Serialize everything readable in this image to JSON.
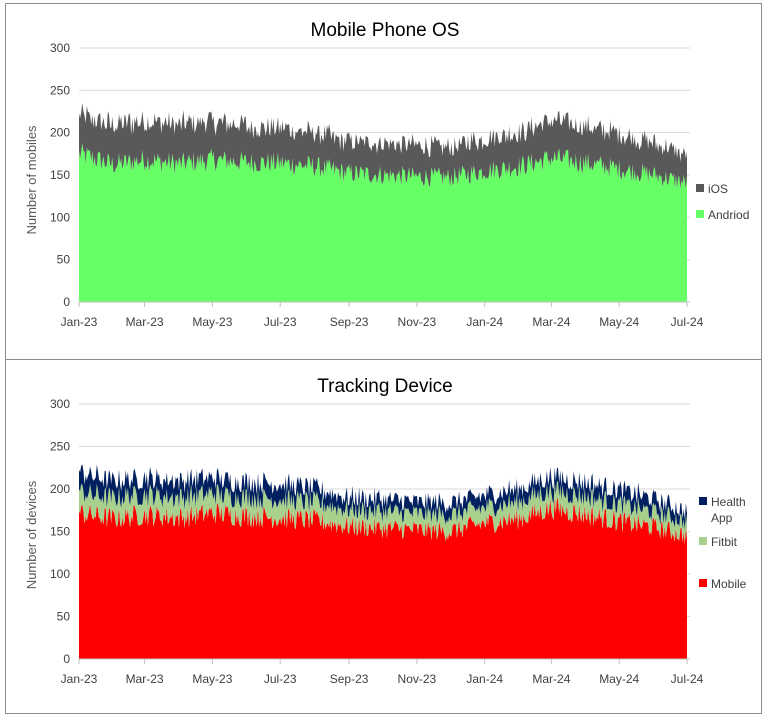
{
  "chart_data": [
    {
      "type": "area",
      "stacked": true,
      "title": "Mobile Phone OS",
      "ylabel": "Number of mobiles",
      "xlabel": "",
      "ylim": [
        0,
        300
      ],
      "yticks": [
        "0",
        "50",
        "100",
        "150",
        "200",
        "250",
        "300"
      ],
      "xticks": [
        "Jan-23",
        "Mar-23",
        "May-23",
        "Jul-23",
        "Sep-23",
        "Nov-23",
        "Jan-24",
        "Mar-24",
        "May-24",
        "Jul-24"
      ],
      "x_range": [
        "2023-01-01",
        "2024-07-01"
      ],
      "series": [
        {
          "name": "Andriod",
          "color": "#66ff66",
          "monthly_avg": [
            [
              "2023-01-01",
              175
            ],
            [
              "2023-02-01",
              162
            ],
            [
              "2023-03-01",
              168
            ],
            [
              "2023-04-01",
              163
            ],
            [
              "2023-05-01",
              168
            ],
            [
              "2023-06-01",
              165
            ],
            [
              "2023-07-01",
              164
            ],
            [
              "2023-08-01",
              160
            ],
            [
              "2023-09-01",
              152
            ],
            [
              "2023-10-01",
              150
            ],
            [
              "2023-11-01",
              148
            ],
            [
              "2023-12-01",
              147
            ],
            [
              "2024-01-01",
              155
            ],
            [
              "2024-02-01",
              160
            ],
            [
              "2024-03-01",
              170
            ],
            [
              "2024-04-01",
              164
            ],
            [
              "2024-05-01",
              157
            ],
            [
              "2024-06-01",
              150
            ],
            [
              "2024-07-01",
              140
            ]
          ]
        },
        {
          "name": "iOS",
          "color": "#595959",
          "monthly_avg": [
            [
              "2023-01-01",
              45
            ],
            [
              "2023-02-01",
              47
            ],
            [
              "2023-03-01",
              45
            ],
            [
              "2023-04-01",
              47
            ],
            [
              "2023-05-01",
              45
            ],
            [
              "2023-06-01",
              43
            ],
            [
              "2023-07-01",
              42
            ],
            [
              "2023-08-01",
              40
            ],
            [
              "2023-09-01",
              38
            ],
            [
              "2023-10-01",
              38
            ],
            [
              "2023-11-01",
              37
            ],
            [
              "2023-12-01",
              36
            ],
            [
              "2024-01-01",
              38
            ],
            [
              "2024-02-01",
              40
            ],
            [
              "2024-03-01",
              45
            ],
            [
              "2024-04-01",
              43
            ],
            [
              "2024-05-01",
              42
            ],
            [
              "2024-06-01",
              38
            ],
            [
              "2024-07-01",
              33
            ]
          ]
        }
      ],
      "legend": [
        "iOS",
        "Andriod"
      ],
      "legend_position": "right"
    },
    {
      "type": "area",
      "stacked": true,
      "title": "Tracking Device",
      "ylabel": "Number of devices",
      "xlabel": "",
      "ylim": [
        0,
        300
      ],
      "yticks": [
        "0",
        "50",
        "100",
        "150",
        "200",
        "250",
        "300"
      ],
      "xticks": [
        "Jan-23",
        "Mar-23",
        "May-23",
        "Jul-23",
        "Sep-23",
        "Nov-23",
        "Jan-24",
        "Mar-24",
        "May-24",
        "Jul-24"
      ],
      "x_range": [
        "2023-01-01",
        "2024-07-01"
      ],
      "series": [
        {
          "name": "Mobile",
          "color": "#ff0000",
          "monthly_avg": [
            [
              "2023-01-01",
              172
            ],
            [
              "2023-02-01",
              165
            ],
            [
              "2023-03-01",
              170
            ],
            [
              "2023-04-01",
              166
            ],
            [
              "2023-05-01",
              172
            ],
            [
              "2023-06-01",
              168
            ],
            [
              "2023-07-01",
              166
            ],
            [
              "2023-08-01",
              163
            ],
            [
              "2023-09-01",
              156
            ],
            [
              "2023-10-01",
              154
            ],
            [
              "2023-11-01",
              152
            ],
            [
              "2023-12-01",
              150
            ],
            [
              "2024-01-01",
              160
            ],
            [
              "2024-02-01",
              165
            ],
            [
              "2024-03-01",
              178
            ],
            [
              "2024-04-01",
              170
            ],
            [
              "2024-05-01",
              162
            ],
            [
              "2024-06-01",
              155
            ],
            [
              "2024-07-01",
              145
            ]
          ]
        },
        {
          "name": "Fitbit",
          "color": "#a9d18e",
          "monthly_avg": [
            [
              "2023-01-01",
              25
            ],
            [
              "2023-02-01",
              24
            ],
            [
              "2023-03-01",
              24
            ],
            [
              "2023-04-01",
              24
            ],
            [
              "2023-05-01",
              23
            ],
            [
              "2023-06-01",
              22
            ],
            [
              "2023-07-01",
              22
            ],
            [
              "2023-08-01",
              21
            ],
            [
              "2023-09-01",
              20
            ],
            [
              "2023-10-01",
              20
            ],
            [
              "2023-11-01",
              19
            ],
            [
              "2023-12-01",
              19
            ],
            [
              "2024-01-01",
              19
            ],
            [
              "2024-02-01",
              20
            ],
            [
              "2024-03-01",
              21
            ],
            [
              "2024-04-01",
              21
            ],
            [
              "2024-05-01",
              20
            ],
            [
              "2024-06-01",
              18
            ],
            [
              "2024-07-01",
              16
            ]
          ]
        },
        {
          "name": "Health App",
          "color": "#002060",
          "monthly_avg": [
            [
              "2023-01-01",
              23
            ],
            [
              "2023-02-01",
              20
            ],
            [
              "2023-03-01",
              19
            ],
            [
              "2023-04-01",
              20
            ],
            [
              "2023-05-01",
              18
            ],
            [
              "2023-06-01",
              18
            ],
            [
              "2023-07-01",
              18
            ],
            [
              "2023-08-01",
              16
            ],
            [
              "2023-09-01",
              14
            ],
            [
              "2023-10-01",
              14
            ],
            [
              "2023-11-01",
              14
            ],
            [
              "2023-12-01",
              14
            ],
            [
              "2024-01-01",
              14
            ],
            [
              "2024-02-01",
              15
            ],
            [
              "2024-03-01",
              16
            ],
            [
              "2024-04-01",
              16
            ],
            [
              "2024-05-01",
              17
            ],
            [
              "2024-06-01",
              15
            ],
            [
              "2024-07-01",
              12
            ]
          ]
        }
      ],
      "legend": [
        "Health App",
        "Fitbit",
        "Mobile"
      ],
      "legend_position": "right"
    }
  ]
}
